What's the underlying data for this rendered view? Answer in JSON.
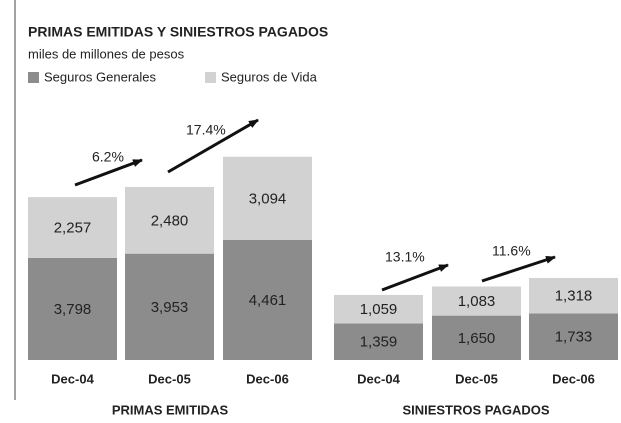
{
  "title": "PRIMAS EMITIDAS Y SINIESTROS PAGADOS",
  "subtitle": "miles de millones de pesos",
  "chart_data": [
    {
      "type": "bar",
      "stacked": true,
      "xlabel": "PRIMAS EMITIDAS",
      "categories": [
        "Dec-04",
        "Dec-05",
        "Dec-06"
      ],
      "series": [
        {
          "name": "Seguros Generales",
          "color": "#8c8c8c",
          "values": [
            3798,
            3953,
            4461
          ],
          "value_labels": [
            "3,798",
            "3,953",
            "4,461"
          ]
        },
        {
          "name": "Seguros  de Vida",
          "color": "#d2d2d2",
          "values": [
            2257,
            2480,
            3094
          ],
          "value_labels": [
            "2,257",
            "2,480",
            "3,094"
          ]
        }
      ],
      "annotations": [
        "6.2%",
        "17.4%"
      ]
    },
    {
      "type": "bar",
      "stacked": true,
      "xlabel": "SINIESTROS PAGADOS",
      "categories": [
        "Dec-04",
        "Dec-05",
        "Dec-06"
      ],
      "series": [
        {
          "name": "Seguros Generales",
          "color": "#8c8c8c",
          "values": [
            1359,
            1650,
            1733
          ],
          "value_labels": [
            "1,359",
            "1,650",
            "1,733"
          ]
        },
        {
          "name": "Seguros  de Vida",
          "color": "#d2d2d2",
          "values": [
            1059,
            1083,
            1318
          ],
          "value_labels": [
            "1,059",
            "1,083",
            "1,318"
          ]
        }
      ],
      "annotations": [
        "13.1%",
        "11.6%"
      ]
    }
  ]
}
